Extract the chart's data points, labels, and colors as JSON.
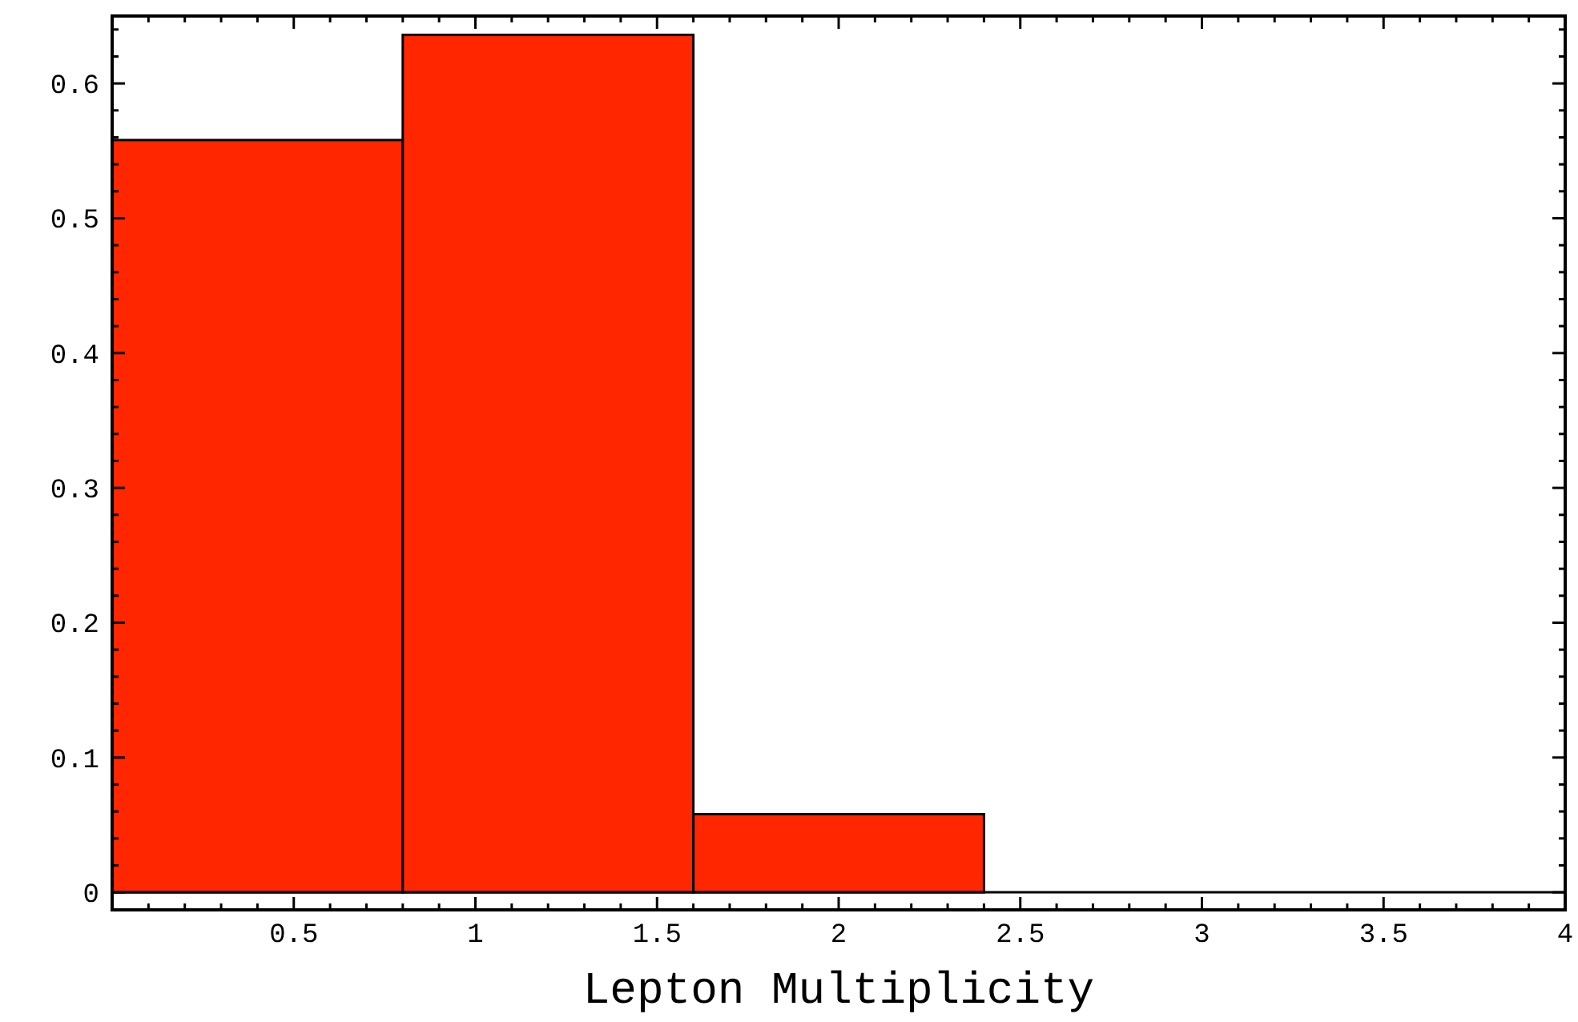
{
  "chart_data": {
    "type": "histogram",
    "xlabel": "Lepton Multiplicity",
    "bins": [
      0,
      0.8,
      1.6,
      2.4
    ],
    "values": [
      0.558,
      0.636,
      0.058
    ],
    "color": "#ff2600",
    "xlim": [
      0,
      4
    ],
    "ylim": [
      -0.013,
      0.65
    ],
    "xticks": [
      {
        "value": 0.1,
        "label": null
      },
      {
        "value": 0.2,
        "label": null
      },
      {
        "value": 0.3,
        "label": null
      },
      {
        "value": 0.4,
        "label": null
      },
      0.5,
      {
        "value": 0.6,
        "label": null
      },
      {
        "value": 0.7,
        "label": null
      },
      {
        "value": 0.8,
        "label": null
      },
      {
        "value": 0.9,
        "label": null
      },
      1,
      {
        "value": 1.1,
        "label": null
      },
      {
        "value": 1.2,
        "label": null
      },
      {
        "value": 1.3,
        "label": null
      },
      {
        "value": 1.4,
        "label": null
      },
      1.5,
      {
        "value": 1.6,
        "label": null
      },
      {
        "value": 1.7,
        "label": null
      },
      {
        "value": 1.8,
        "label": null
      },
      {
        "value": 1.9,
        "label": null
      },
      2,
      {
        "value": 2.1,
        "label": null
      },
      {
        "value": 2.2,
        "label": null
      },
      {
        "value": 2.3,
        "label": null
      },
      {
        "value": 2.4,
        "label": null
      },
      2.5,
      {
        "value": 2.6,
        "label": null
      },
      {
        "value": 2.7,
        "label": null
      },
      {
        "value": 2.8,
        "label": null
      },
      {
        "value": 2.9,
        "label": null
      },
      3,
      {
        "value": 3.1,
        "label": null
      },
      {
        "value": 3.2,
        "label": null
      },
      {
        "value": 3.3,
        "label": null
      },
      {
        "value": 3.4,
        "label": null
      },
      3.5,
      {
        "value": 3.6,
        "label": null
      },
      {
        "value": 3.7,
        "label": null
      },
      {
        "value": 3.8,
        "label": null
      },
      {
        "value": 3.9,
        "label": null
      },
      4
    ],
    "yticks": [
      0,
      {
        "value": 0.02,
        "label": null
      },
      {
        "value": 0.04,
        "label": null
      },
      {
        "value": 0.06,
        "label": null
      },
      {
        "value": 0.08,
        "label": null
      },
      0.1,
      {
        "value": 0.12,
        "label": null
      },
      {
        "value": 0.14,
        "label": null
      },
      {
        "value": 0.16,
        "label": null
      },
      {
        "value": 0.18,
        "label": null
      },
      0.2,
      {
        "value": 0.22,
        "label": null
      },
      {
        "value": 0.24,
        "label": null
      },
      {
        "value": 0.26,
        "label": null
      },
      {
        "value": 0.28,
        "label": null
      },
      0.3,
      {
        "value": 0.32,
        "label": null
      },
      {
        "value": 0.34,
        "label": null
      },
      {
        "value": 0.36,
        "label": null
      },
      {
        "value": 0.38,
        "label": null
      },
      0.4,
      {
        "value": 0.42,
        "label": null
      },
      {
        "value": 0.44,
        "label": null
      },
      {
        "value": 0.46,
        "label": null
      },
      {
        "value": 0.48,
        "label": null
      },
      0.5,
      {
        "value": 0.52,
        "label": null
      },
      {
        "value": 0.54,
        "label": null
      },
      {
        "value": 0.56,
        "label": null
      },
      {
        "value": 0.58,
        "label": null
      },
      0.6,
      {
        "value": 0.62,
        "label": null
      },
      {
        "value": 0.64,
        "label": null
      }
    ],
    "ref_lines": [
      {
        "axis": "y",
        "value": 0,
        "color": "#000000"
      }
    ]
  }
}
